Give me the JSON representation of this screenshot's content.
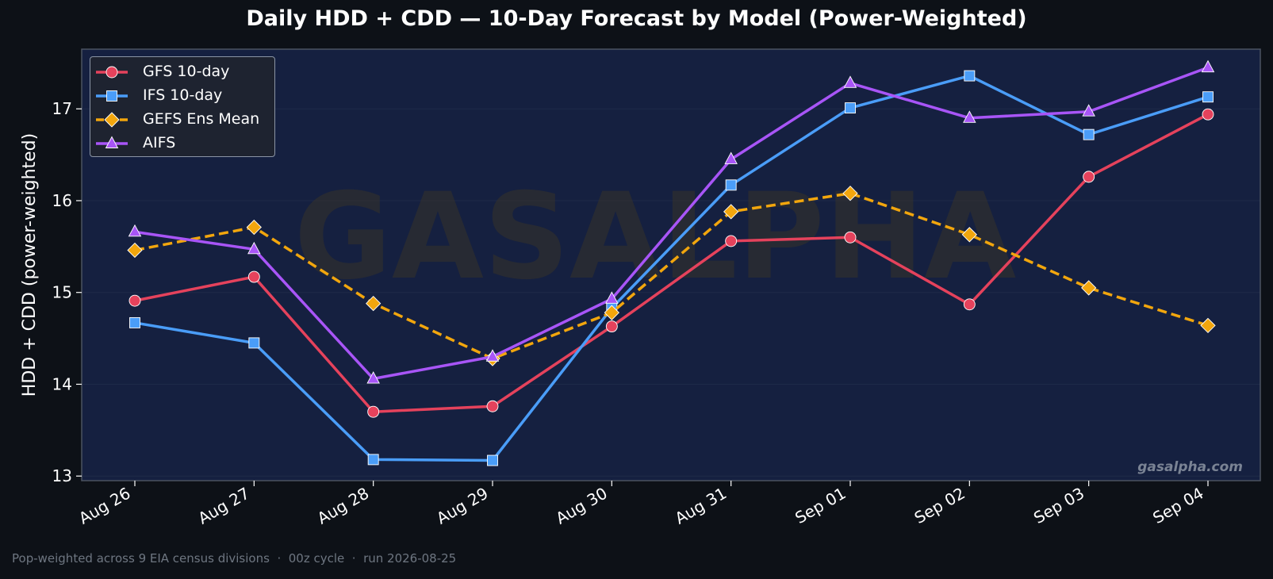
{
  "title": "Daily HDD + CDD — 10-Day Forecast by Model (Power-Weighted)",
  "footer": "Pop-weighted across 9 EIA census divisions  ·  00z cycle  ·  run 2026-08-25",
  "watermark": "GASALPHA",
  "site_label": "gasalpha.com",
  "colors": {
    "page_bg": "#0d1117",
    "plot_bg": "#152040",
    "grid": "#1e2a48",
    "axis": "#4b5260"
  },
  "chart_data": {
    "type": "line",
    "title": "Daily HDD + CDD — 10-Day Forecast by Model (Power-Weighted)",
    "xlabel": "",
    "ylabel": "HDD + CDD (power-weighted)",
    "categories": [
      "Aug 26",
      "Aug 27",
      "Aug 28",
      "Aug 29",
      "Aug 30",
      "Aug 31",
      "Sep 01",
      "Sep 02",
      "Sep 03",
      "Sep 04"
    ],
    "yticks": [
      13,
      14,
      15,
      16,
      17
    ],
    "ylim": [
      12.95,
      17.65
    ],
    "grid": true,
    "legend_position": "upper-left",
    "series": [
      {
        "name": "GFS 10-day",
        "color": "#e5425c",
        "marker": "circle",
        "dashed": false,
        "values": [
          14.91,
          15.17,
          13.7,
          13.76,
          14.63,
          15.56,
          15.6,
          14.87,
          16.26,
          16.94
        ]
      },
      {
        "name": "IFS 10-day",
        "color": "#4a9df8",
        "marker": "square",
        "dashed": false,
        "values": [
          14.67,
          14.45,
          13.18,
          13.17,
          14.83,
          16.17,
          17.01,
          17.36,
          16.72,
          17.13
        ]
      },
      {
        "name": "GEFS Ens Mean",
        "color": "#f2a60d",
        "marker": "diamond",
        "dashed": true,
        "values": [
          15.46,
          15.71,
          14.88,
          14.28,
          14.78,
          15.88,
          16.08,
          15.63,
          15.05,
          14.64
        ]
      },
      {
        "name": "AIFS",
        "color": "#a855f7",
        "marker": "triangle",
        "dashed": false,
        "values": [
          15.66,
          15.47,
          14.06,
          14.3,
          14.93,
          16.45,
          17.28,
          16.9,
          16.97,
          17.45
        ]
      }
    ]
  }
}
